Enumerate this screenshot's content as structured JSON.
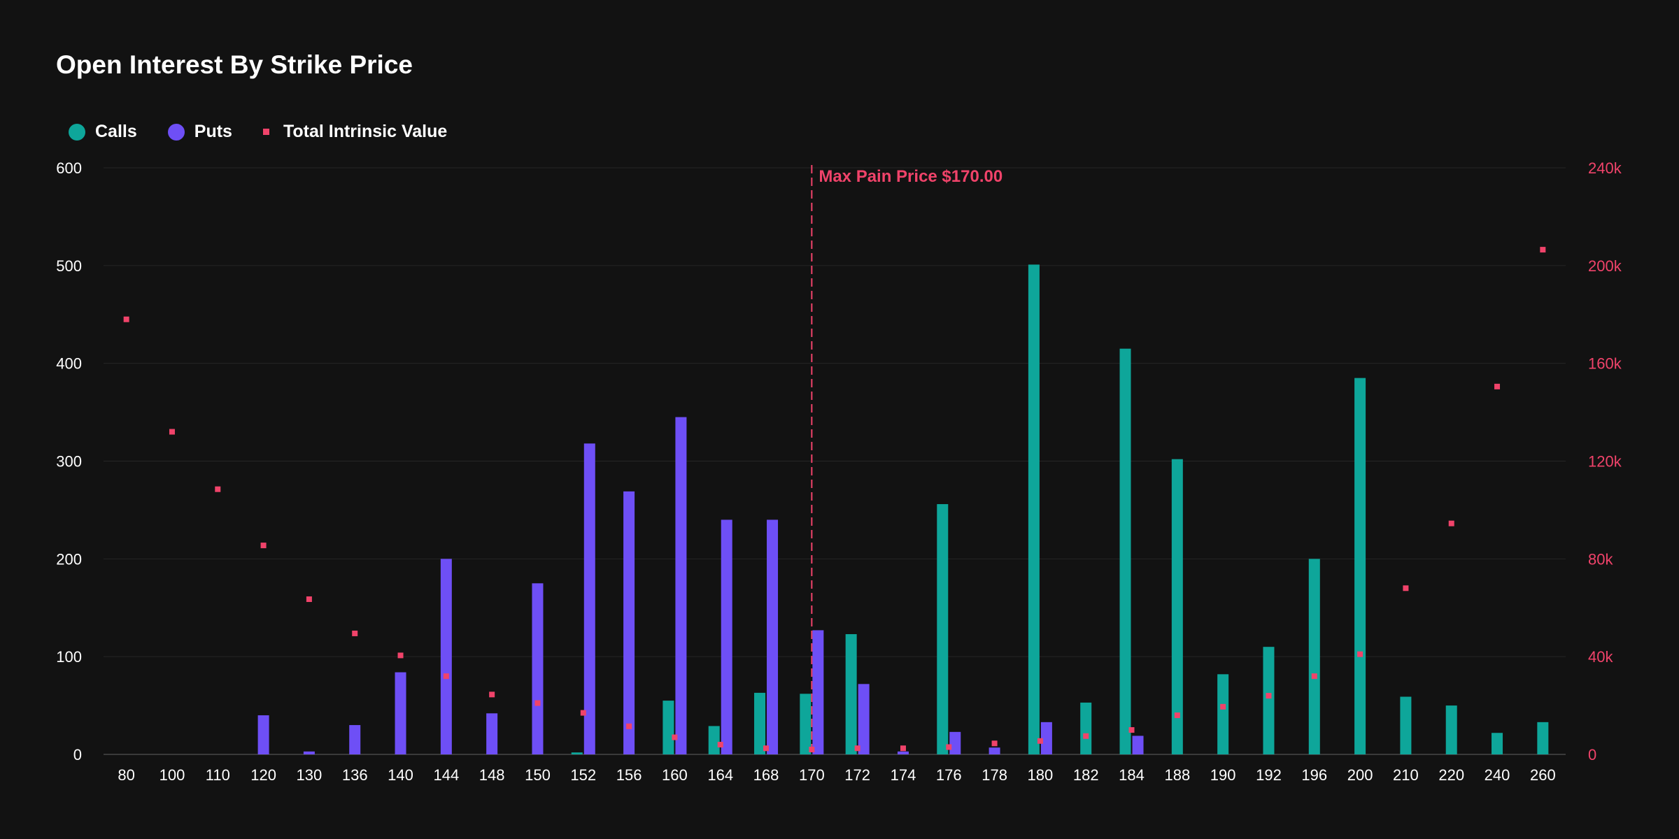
{
  "colors": {
    "background": "#121212",
    "calls": "#0ea69a",
    "puts": "#6e4ff6",
    "intrinsic": "#f0436a",
    "grid": "#262626",
    "axis": "#3a3a3a",
    "text": "#ffffff"
  },
  "chart_data": {
    "type": "bar",
    "title": "Open Interest By Strike Price",
    "legend_position": "top-left",
    "grid": true,
    "categories": [
      "80",
      "100",
      "110",
      "120",
      "130",
      "136",
      "140",
      "144",
      "148",
      "150",
      "152",
      "156",
      "160",
      "164",
      "168",
      "170",
      "172",
      "174",
      "176",
      "178",
      "180",
      "182",
      "184",
      "188",
      "190",
      "192",
      "196",
      "200",
      "210",
      "220",
      "240",
      "260"
    ],
    "series": [
      {
        "name": "Calls",
        "axis": "left",
        "type": "bar",
        "values": [
          0,
          0,
          0,
          0,
          0,
          0,
          0,
          0,
          0,
          0,
          2,
          0,
          55,
          29,
          63,
          62,
          123,
          0,
          256,
          0,
          501,
          53,
          415,
          302,
          82,
          110,
          200,
          385,
          59,
          50,
          22,
          33
        ]
      },
      {
        "name": "Puts",
        "axis": "left",
        "type": "bar",
        "values": [
          0,
          0,
          0,
          40,
          3,
          30,
          84,
          200,
          42,
          175,
          318,
          269,
          345,
          240,
          240,
          127,
          72,
          3,
          23,
          7,
          33,
          0,
          19,
          0,
          0,
          0,
          0,
          0,
          0,
          0,
          0,
          0
        ]
      },
      {
        "name": "Total Intrinsic Value",
        "axis": "right",
        "type": "scatter",
        "values": [
          178000,
          132000,
          108500,
          85500,
          63500,
          49500,
          40500,
          32000,
          24500,
          21000,
          17000,
          11500,
          7000,
          4000,
          2500,
          2000,
          2500,
          2500,
          3000,
          4500,
          5500,
          7500,
          10000,
          16000,
          19500,
          24000,
          32000,
          41000,
          68000,
          94500,
          150500,
          206500
        ]
      }
    ],
    "ylim_left": [
      0,
      600
    ],
    "yticks_left": [
      0,
      100,
      200,
      300,
      400,
      500,
      600
    ],
    "ylim_right": [
      0,
      240000
    ],
    "yticks_right": [
      "0",
      "40k",
      "80k",
      "120k",
      "160k",
      "200k",
      "240k"
    ],
    "annotation": {
      "label": "Max Pain Price $170.00",
      "category": "170"
    }
  }
}
